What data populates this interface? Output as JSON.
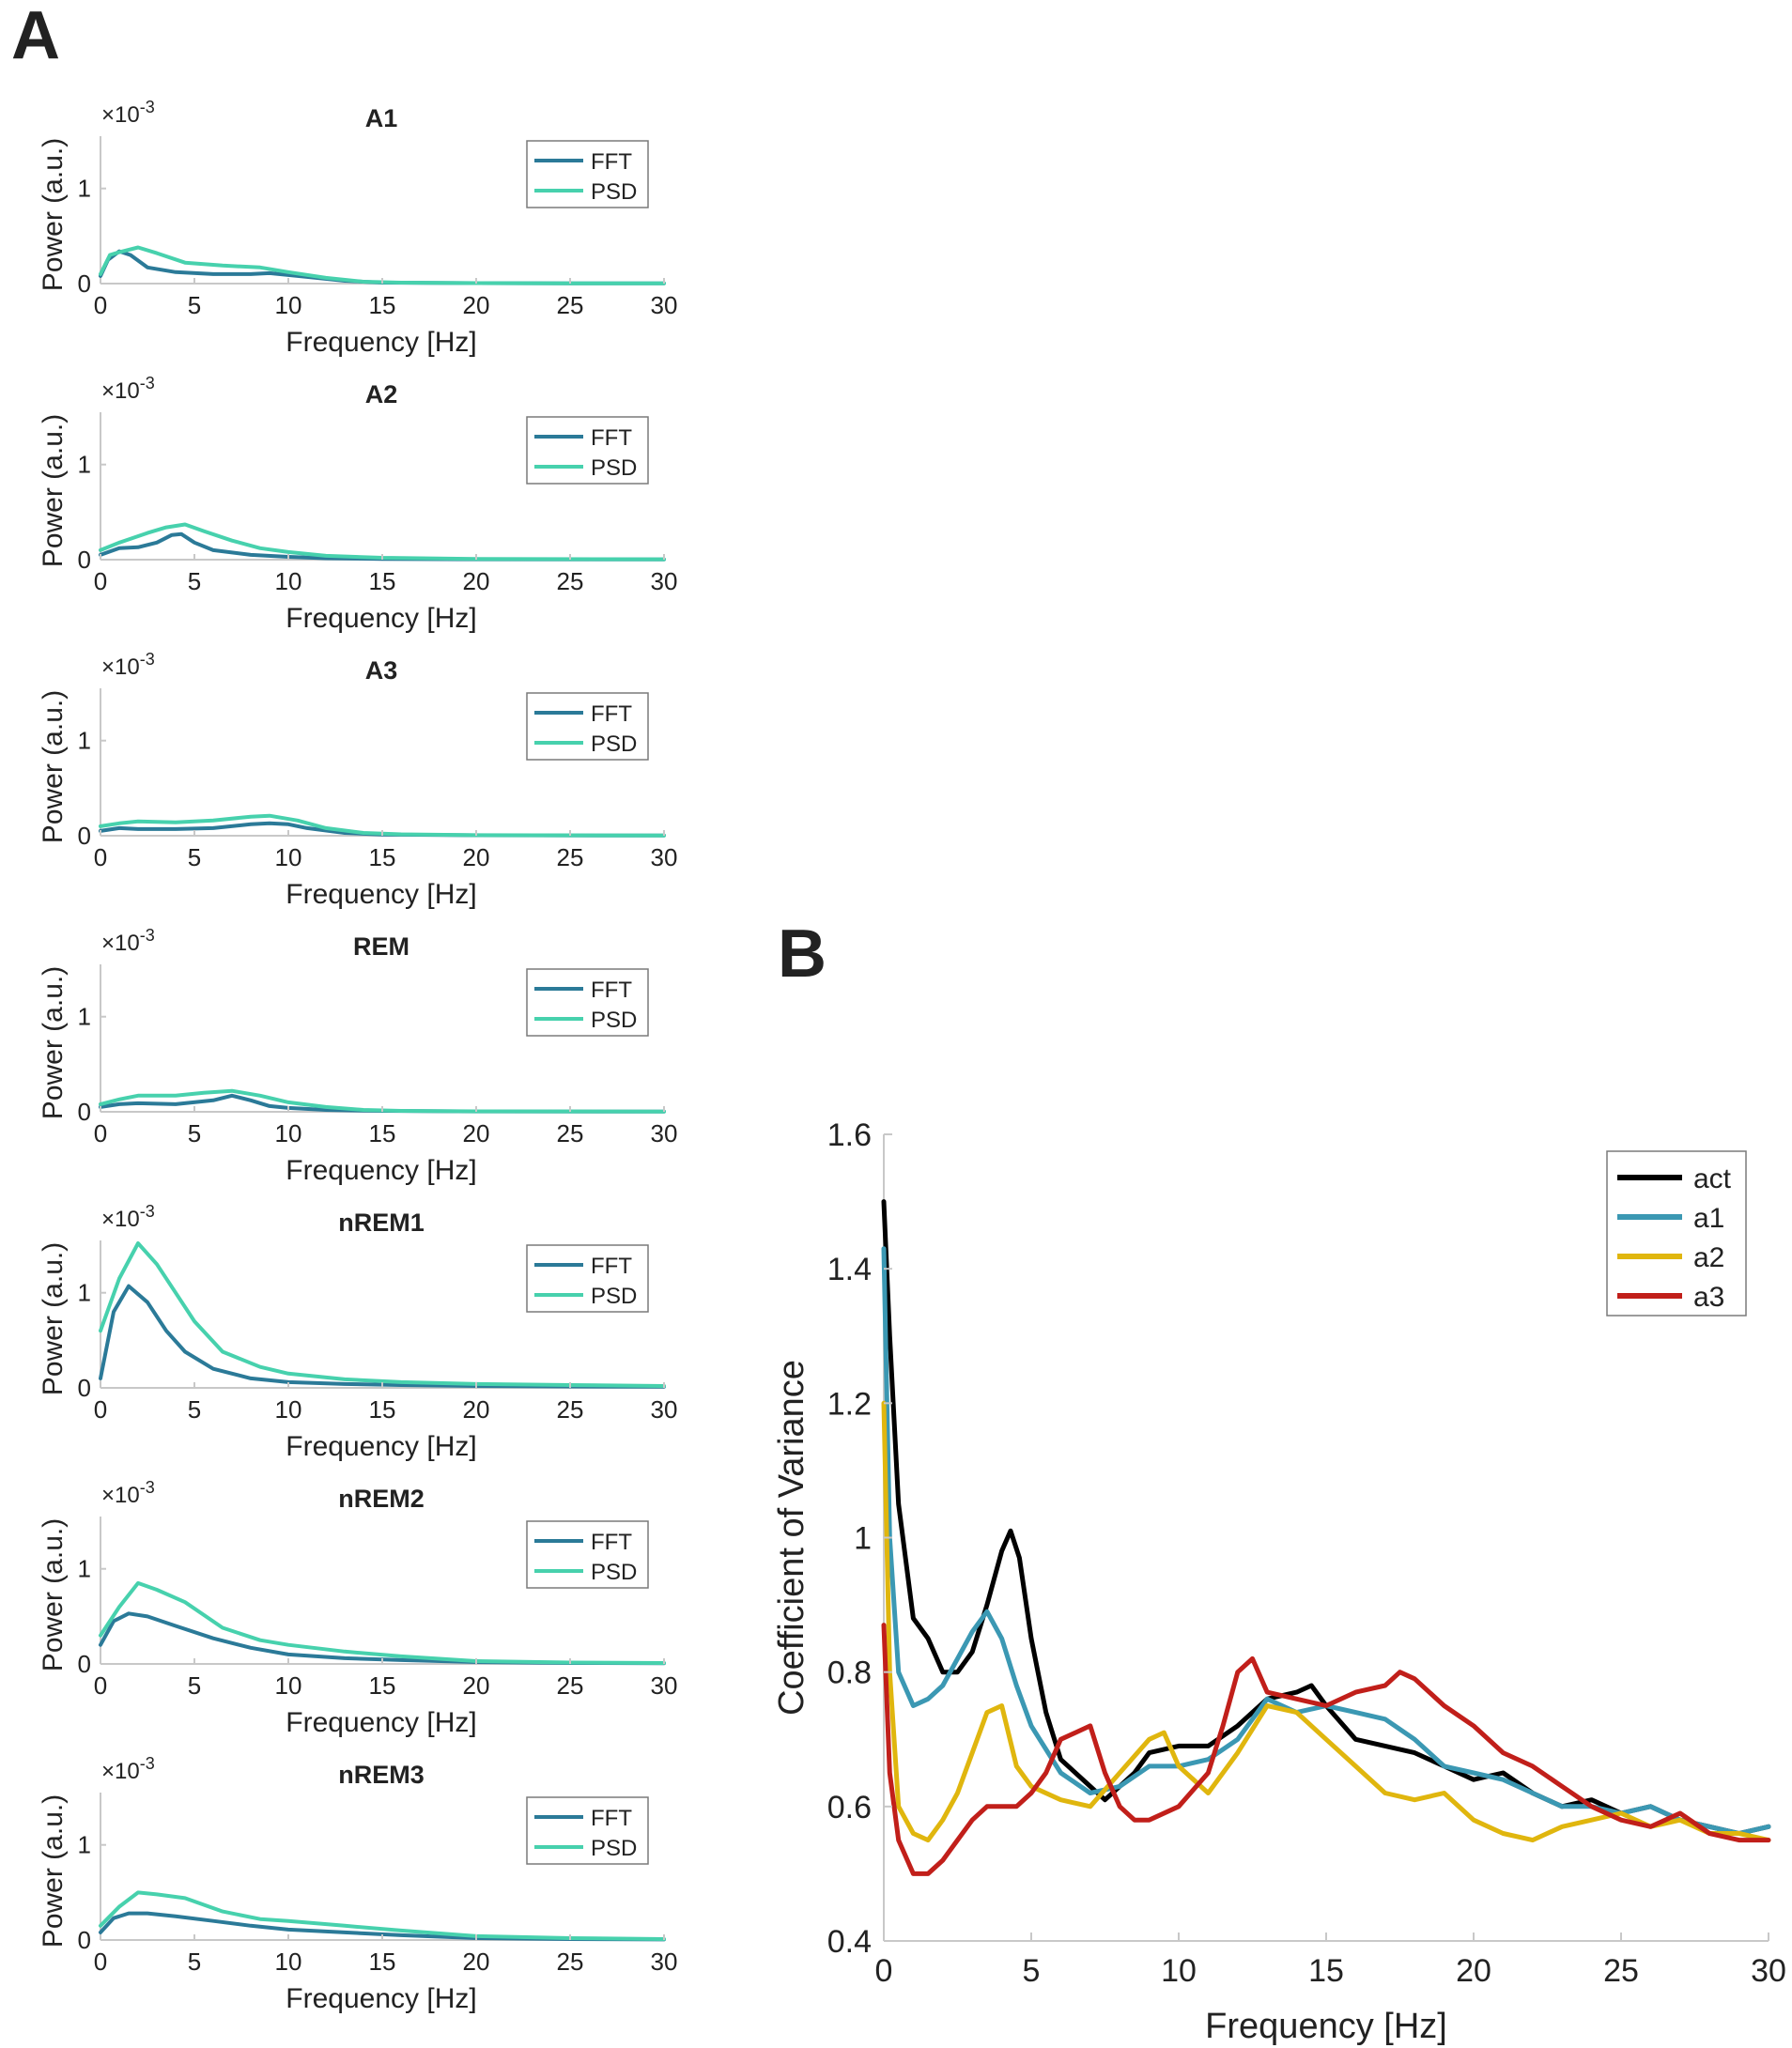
{
  "panel_a_label": "A",
  "panel_b_label": "B",
  "chart_data": [
    {
      "type": "line",
      "title": "A1",
      "xlabel": "Frequency [Hz]",
      "ylabel": "Power (a.u.)",
      "exponent_label": "×10",
      "exponent_power": "-3",
      "xlim": [
        0,
        30
      ],
      "ylim": [
        0,
        1.55
      ],
      "xticks": [
        0,
        5,
        10,
        15,
        20,
        25,
        30
      ],
      "yticks": [
        0,
        1
      ],
      "legend": [
        "FFT",
        "PSD"
      ],
      "colors": [
        "#2b7a98",
        "#47d1ad"
      ],
      "series": [
        {
          "name": "FFT",
          "x": [
            0,
            0.4,
            1,
            1.6,
            2.5,
            4,
            6,
            8,
            9,
            11,
            13,
            15,
            20,
            25,
            30
          ],
          "y": [
            0.08,
            0.25,
            0.34,
            0.3,
            0.17,
            0.12,
            0.1,
            0.1,
            0.11,
            0.07,
            0.03,
            0.01,
            0.005,
            0.003,
            0.002
          ]
        },
        {
          "name": "PSD",
          "x": [
            0,
            0.5,
            1,
            2,
            3,
            4.5,
            6.5,
            8.5,
            10,
            12,
            14,
            16,
            20,
            25,
            30
          ],
          "y": [
            0.1,
            0.3,
            0.33,
            0.38,
            0.32,
            0.22,
            0.19,
            0.17,
            0.12,
            0.06,
            0.02,
            0.01,
            0.005,
            0.003,
            0.002
          ]
        }
      ]
    },
    {
      "type": "line",
      "title": "A2",
      "xlabel": "Frequency [Hz]",
      "ylabel": "Power (a.u.)",
      "exponent_label": "×10",
      "exponent_power": "-3",
      "xlim": [
        0,
        30
      ],
      "ylim": [
        0,
        1.55
      ],
      "xticks": [
        0,
        5,
        10,
        15,
        20,
        25,
        30
      ],
      "yticks": [
        0,
        1
      ],
      "legend": [
        "FFT",
        "PSD"
      ],
      "colors": [
        "#2b7a98",
        "#47d1ad"
      ],
      "series": [
        {
          "name": "FFT",
          "x": [
            0,
            1,
            2,
            3,
            3.8,
            4.3,
            5,
            6,
            8,
            10,
            12,
            15,
            20,
            30
          ],
          "y": [
            0.05,
            0.12,
            0.13,
            0.18,
            0.26,
            0.27,
            0.18,
            0.1,
            0.05,
            0.03,
            0.015,
            0.008,
            0.004,
            0.002
          ]
        },
        {
          "name": "PSD",
          "x": [
            0,
            1,
            2.5,
            3.5,
            4.5,
            5.5,
            7,
            8.5,
            10,
            12,
            15,
            20,
            30
          ],
          "y": [
            0.1,
            0.18,
            0.28,
            0.34,
            0.37,
            0.3,
            0.2,
            0.12,
            0.08,
            0.04,
            0.02,
            0.008,
            0.004
          ]
        }
      ]
    },
    {
      "type": "line",
      "title": "A3",
      "xlabel": "Frequency [Hz]",
      "ylabel": "Power (a.u.)",
      "exponent_label": "×10",
      "exponent_power": "-3",
      "xlim": [
        0,
        30
      ],
      "ylim": [
        0,
        1.55
      ],
      "xticks": [
        0,
        5,
        10,
        15,
        20,
        25,
        30
      ],
      "yticks": [
        0,
        1
      ],
      "legend": [
        "FFT",
        "PSD"
      ],
      "colors": [
        "#2b7a98",
        "#47d1ad"
      ],
      "series": [
        {
          "name": "FFT",
          "x": [
            0,
            1,
            2,
            4,
            6,
            8,
            9,
            10,
            11,
            13,
            15,
            20,
            30
          ],
          "y": [
            0.05,
            0.08,
            0.07,
            0.07,
            0.08,
            0.12,
            0.13,
            0.12,
            0.08,
            0.03,
            0.012,
            0.005,
            0.002
          ]
        },
        {
          "name": "PSD",
          "x": [
            0,
            1,
            2,
            4,
            6,
            8,
            9,
            10.5,
            12,
            14,
            16,
            20,
            30
          ],
          "y": [
            0.1,
            0.13,
            0.15,
            0.14,
            0.16,
            0.2,
            0.21,
            0.16,
            0.08,
            0.03,
            0.015,
            0.006,
            0.003
          ]
        }
      ]
    },
    {
      "type": "line",
      "title": "REM",
      "xlabel": "Frequency [Hz]",
      "ylabel": "Power (a.u.)",
      "exponent_label": "×10",
      "exponent_power": "-3",
      "xlim": [
        0,
        30
      ],
      "ylim": [
        0,
        1.55
      ],
      "xticks": [
        0,
        5,
        10,
        15,
        20,
        25,
        30
      ],
      "yticks": [
        0,
        1
      ],
      "legend": [
        "FFT",
        "PSD"
      ],
      "colors": [
        "#2b7a98",
        "#47d1ad"
      ],
      "series": [
        {
          "name": "FFT",
          "x": [
            0,
            1,
            2,
            4,
            6,
            7,
            8,
            9,
            10,
            12,
            15,
            20,
            30
          ],
          "y": [
            0.05,
            0.08,
            0.09,
            0.08,
            0.12,
            0.17,
            0.12,
            0.06,
            0.04,
            0.02,
            0.01,
            0.004,
            0.002
          ]
        },
        {
          "name": "PSD",
          "x": [
            0,
            1,
            2,
            4,
            5.5,
            7,
            8.5,
            10,
            12,
            14,
            16,
            20,
            30
          ],
          "y": [
            0.08,
            0.13,
            0.17,
            0.17,
            0.2,
            0.22,
            0.17,
            0.1,
            0.05,
            0.02,
            0.01,
            0.005,
            0.003
          ]
        }
      ]
    },
    {
      "type": "line",
      "title": "nREM1",
      "xlabel": "Frequency [Hz]",
      "ylabel": "Power (a.u.)",
      "exponent_label": "×10",
      "exponent_power": "-3",
      "xlim": [
        0,
        30
      ],
      "ylim": [
        0,
        1.55
      ],
      "xticks": [
        0,
        5,
        10,
        15,
        20,
        25,
        30
      ],
      "yticks": [
        0,
        1
      ],
      "legend": [
        "FFT",
        "PSD"
      ],
      "colors": [
        "#2b7a98",
        "#47d1ad"
      ],
      "series": [
        {
          "name": "FFT",
          "x": [
            0,
            0.7,
            1.5,
            2.5,
            3.5,
            4.5,
            6,
            8,
            10,
            13,
            16,
            20,
            25,
            30
          ],
          "y": [
            0.1,
            0.8,
            1.07,
            0.9,
            0.6,
            0.38,
            0.2,
            0.1,
            0.06,
            0.04,
            0.03,
            0.02,
            0.015,
            0.012
          ]
        },
        {
          "name": "PSD",
          "x": [
            0,
            1,
            2,
            3,
            4,
            5,
            6.5,
            8.5,
            10,
            13,
            16,
            20,
            25,
            30
          ],
          "y": [
            0.6,
            1.15,
            1.52,
            1.3,
            1.0,
            0.7,
            0.38,
            0.22,
            0.15,
            0.09,
            0.06,
            0.04,
            0.03,
            0.02
          ]
        }
      ]
    },
    {
      "type": "line",
      "title": "nREM2",
      "xlabel": "Frequency [Hz]",
      "ylabel": "Power (a.u.)",
      "exponent_label": "×10",
      "exponent_power": "-3",
      "xlim": [
        0,
        30
      ],
      "ylim": [
        0,
        1.55
      ],
      "xticks": [
        0,
        5,
        10,
        15,
        20,
        25,
        30
      ],
      "yticks": [
        0,
        1
      ],
      "legend": [
        "FFT",
        "PSD"
      ],
      "colors": [
        "#2b7a98",
        "#47d1ad"
      ],
      "series": [
        {
          "name": "FFT",
          "x": [
            0,
            0.7,
            1.5,
            2.5,
            4,
            6,
            8,
            10,
            13,
            16,
            20,
            25,
            30
          ],
          "y": [
            0.2,
            0.45,
            0.53,
            0.5,
            0.4,
            0.27,
            0.17,
            0.1,
            0.06,
            0.04,
            0.02,
            0.01,
            0.008
          ]
        },
        {
          "name": "PSD",
          "x": [
            0,
            1,
            2,
            3,
            4.5,
            6.5,
            8.5,
            10,
            13,
            16,
            20,
            25,
            30
          ],
          "y": [
            0.3,
            0.6,
            0.85,
            0.78,
            0.65,
            0.38,
            0.25,
            0.2,
            0.13,
            0.08,
            0.03,
            0.015,
            0.01
          ]
        }
      ]
    },
    {
      "type": "line",
      "title": "nREM3",
      "xlabel": "Frequency [Hz]",
      "ylabel": "Power (a.u.)",
      "exponent_label": "×10",
      "exponent_power": "-3",
      "xlim": [
        0,
        30
      ],
      "ylim": [
        0,
        1.55
      ],
      "xticks": [
        0,
        5,
        10,
        15,
        20,
        25,
        30
      ],
      "yticks": [
        0,
        1
      ],
      "legend": [
        "FFT",
        "PSD"
      ],
      "colors": [
        "#2b7a98",
        "#47d1ad"
      ],
      "series": [
        {
          "name": "FFT",
          "x": [
            0,
            0.7,
            1.5,
            2.5,
            4,
            6,
            8,
            10,
            13,
            16,
            20,
            25,
            30
          ],
          "y": [
            0.08,
            0.23,
            0.28,
            0.28,
            0.25,
            0.2,
            0.15,
            0.11,
            0.08,
            0.05,
            0.02,
            0.01,
            0.006
          ]
        },
        {
          "name": "PSD",
          "x": [
            0,
            1,
            2,
            3,
            4.5,
            6.5,
            8.5,
            10,
            13,
            16,
            20,
            25,
            30
          ],
          "y": [
            0.15,
            0.35,
            0.5,
            0.48,
            0.44,
            0.3,
            0.22,
            0.2,
            0.15,
            0.1,
            0.04,
            0.02,
            0.01
          ]
        }
      ]
    },
    {
      "type": "line",
      "title": "",
      "xlabel": "Frequency [Hz]",
      "ylabel": "Coefficient of Variance",
      "xlim": [
        0,
        30
      ],
      "ylim": [
        0.4,
        1.6
      ],
      "xticks": [
        0,
        5,
        10,
        15,
        20,
        25,
        30
      ],
      "yticks": [
        0.4,
        0.6,
        0.8,
        1,
        1.2,
        1.4,
        1.6
      ],
      "ytick_labels": [
        "0.4",
        "0.6",
        "0.8",
        "1",
        "1.2",
        "1.4",
        "1.6"
      ],
      "legend": [
        "act",
        "a1",
        "a2",
        "a3"
      ],
      "colors": [
        "#000000",
        "#3b98b3",
        "#e0b60e",
        "#c11f1a"
      ],
      "series": [
        {
          "name": "act",
          "x": [
            0,
            0.2,
            0.5,
            1,
            1.5,
            2,
            2.5,
            3,
            3.5,
            4,
            4.3,
            4.6,
            5,
            5.5,
            6,
            7,
            7.5,
            8,
            8.5,
            9,
            10,
            11,
            12,
            13,
            14,
            14.5,
            15,
            16,
            17,
            18,
            19,
            20,
            21,
            22,
            23,
            24,
            25,
            26,
            27,
            28,
            29,
            30
          ],
          "y": [
            1.5,
            1.3,
            1.05,
            0.88,
            0.85,
            0.8,
            0.8,
            0.83,
            0.9,
            0.98,
            1.01,
            0.97,
            0.85,
            0.74,
            0.67,
            0.63,
            0.61,
            0.63,
            0.65,
            0.68,
            0.69,
            0.69,
            0.72,
            0.76,
            0.77,
            0.78,
            0.75,
            0.7,
            0.69,
            0.68,
            0.66,
            0.64,
            0.65,
            0.62,
            0.6,
            0.61,
            0.59,
            0.6,
            0.58,
            0.57,
            0.56,
            0.57
          ]
        },
        {
          "name": "a1",
          "x": [
            0,
            0.2,
            0.5,
            1,
            1.5,
            2,
            2.5,
            3,
            3.5,
            4,
            4.5,
            5,
            6,
            7,
            8,
            9,
            10,
            11,
            12,
            13,
            14,
            15,
            16,
            17,
            18,
            19,
            20,
            21,
            22,
            23,
            24,
            25,
            26,
            27,
            28,
            29,
            30
          ],
          "y": [
            1.43,
            1.0,
            0.8,
            0.75,
            0.76,
            0.78,
            0.82,
            0.86,
            0.89,
            0.85,
            0.78,
            0.72,
            0.65,
            0.62,
            0.63,
            0.66,
            0.66,
            0.67,
            0.7,
            0.76,
            0.74,
            0.75,
            0.74,
            0.73,
            0.7,
            0.66,
            0.65,
            0.64,
            0.62,
            0.6,
            0.6,
            0.59,
            0.6,
            0.58,
            0.57,
            0.56,
            0.57
          ]
        },
        {
          "name": "a2",
          "x": [
            0,
            0.2,
            0.5,
            1,
            1.5,
            2,
            2.5,
            3,
            3.5,
            4,
            4.5,
            5,
            6,
            7,
            8,
            9,
            9.5,
            10,
            11,
            12,
            13,
            14,
            15,
            16,
            17,
            18,
            19,
            20,
            21,
            22,
            23,
            24,
            25,
            26,
            27,
            28,
            29,
            30
          ],
          "y": [
            1.2,
            0.8,
            0.6,
            0.56,
            0.55,
            0.58,
            0.62,
            0.68,
            0.74,
            0.75,
            0.66,
            0.63,
            0.61,
            0.6,
            0.65,
            0.7,
            0.71,
            0.66,
            0.62,
            0.68,
            0.75,
            0.74,
            0.7,
            0.66,
            0.62,
            0.61,
            0.62,
            0.58,
            0.56,
            0.55,
            0.57,
            0.58,
            0.59,
            0.57,
            0.58,
            0.56,
            0.56,
            0.55
          ]
        },
        {
          "name": "a3",
          "x": [
            0,
            0.2,
            0.5,
            1,
            1.5,
            2,
            2.5,
            3,
            3.5,
            4,
            4.5,
            5,
            5.5,
            6,
            7,
            7.5,
            8,
            8.5,
            9,
            10,
            11,
            11.5,
            12,
            12.5,
            13,
            14,
            15,
            16,
            17,
            17.5,
            18,
            19,
            20,
            21,
            22,
            23,
            24,
            25,
            26,
            27,
            28,
            29,
            30
          ],
          "y": [
            0.87,
            0.65,
            0.55,
            0.5,
            0.5,
            0.52,
            0.55,
            0.58,
            0.6,
            0.6,
            0.6,
            0.62,
            0.65,
            0.7,
            0.72,
            0.65,
            0.6,
            0.58,
            0.58,
            0.6,
            0.65,
            0.72,
            0.8,
            0.82,
            0.77,
            0.76,
            0.75,
            0.77,
            0.78,
            0.8,
            0.79,
            0.75,
            0.72,
            0.68,
            0.66,
            0.63,
            0.6,
            0.58,
            0.57,
            0.59,
            0.56,
            0.55,
            0.55
          ]
        }
      ]
    }
  ]
}
